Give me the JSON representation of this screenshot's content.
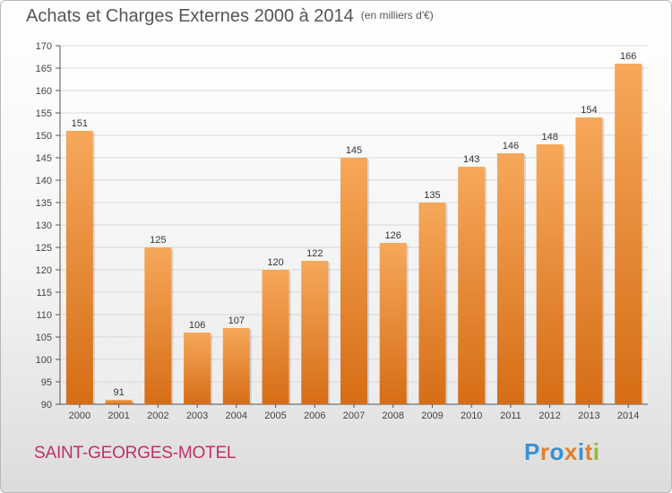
{
  "header": {
    "title": "Achats et Charges Externes 2000 à 2014",
    "unit": "(en milliers d'€)"
  },
  "footer": {
    "commune": "SAINT-GEORGES-MOTEL",
    "logo_text": "Proxiti"
  },
  "colors": {
    "bar_top": "#f6a85a",
    "bar_bottom": "#d66d16",
    "commune": "#c0306a",
    "logo_letters": [
      "#3b8fd0",
      "#e0802a",
      "#3b8fd0",
      "#e0802a",
      "#3b8fd0",
      "#e0802a",
      "#8cbf3a"
    ]
  },
  "chart_data": {
    "type": "bar",
    "title": "Achats et Charges Externes 2000 à 2014",
    "subtitle": "(en milliers d'€)",
    "xlabel": "",
    "ylabel": "",
    "categories": [
      "2000",
      "2001",
      "2002",
      "2003",
      "2004",
      "2005",
      "2006",
      "2007",
      "2008",
      "2009",
      "2010",
      "2011",
      "2012",
      "2013",
      "2014"
    ],
    "values": [
      151,
      91,
      125,
      106,
      107,
      120,
      122,
      145,
      126,
      135,
      143,
      146,
      148,
      154,
      166
    ],
    "ylim": [
      90,
      170
    ],
    "yticks": [
      90,
      95,
      100,
      105,
      110,
      115,
      120,
      125,
      130,
      135,
      140,
      145,
      150,
      155,
      160,
      165,
      170
    ],
    "grid": true,
    "data_labels": true,
    "legend": "none"
  }
}
